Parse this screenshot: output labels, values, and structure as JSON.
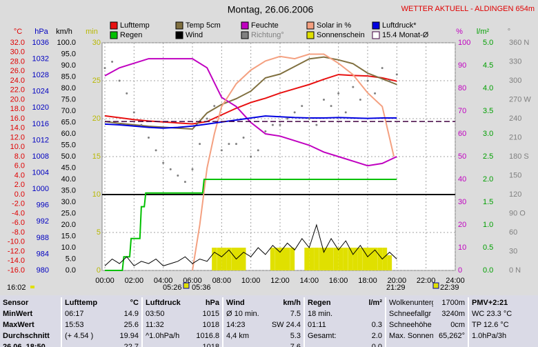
{
  "chart_data": {
    "type": "line",
    "title": "Montag, 26.06.2006",
    "station": "WETTER AKTUELL - ALDINGEN 654m",
    "xlim": [
      0,
      24
    ],
    "xticks": [
      {
        "value": 0,
        "label": "00:00"
      },
      {
        "value": 2,
        "label": "02:00"
      },
      {
        "value": 4,
        "label": "04:00"
      },
      {
        "value": 6,
        "label": "06:00"
      },
      {
        "value": 8,
        "label": "08:00"
      },
      {
        "value": 10,
        "label": "10:00"
      },
      {
        "value": 12,
        "label": "12:00"
      },
      {
        "value": 14,
        "label": "14:00"
      },
      {
        "value": 16,
        "label": "16:00"
      },
      {
        "value": 18,
        "label": "18:00"
      },
      {
        "value": 20,
        "label": "20:00"
      },
      {
        "value": 22,
        "label": "22:00"
      },
      {
        "value": 24,
        "label": "24:00"
      }
    ],
    "time_labels": [
      "16:02",
      "05:26",
      "05:36",
      "21:29",
      "22:39"
    ],
    "axes": {
      "temp": {
        "label": "°C",
        "color": "#e00000",
        "lim": [
          -16,
          32
        ],
        "ticks": [
          {
            "value": 32,
            "label": "32.0"
          },
          {
            "value": 30,
            "label": "30.0"
          },
          {
            "value": 28,
            "label": "28.0"
          },
          {
            "value": 26,
            "label": "26.0"
          },
          {
            "value": 24,
            "label": "24.0"
          },
          {
            "value": 22,
            "label": "22.0"
          },
          {
            "value": 20,
            "label": "20.0"
          },
          {
            "value": 18,
            "label": "18.0"
          },
          {
            "value": 16,
            "label": "16.0"
          },
          {
            "value": 14,
            "label": "14.0"
          },
          {
            "value": 12,
            "label": "12.0"
          },
          {
            "value": 10,
            "label": "10.0"
          },
          {
            "value": 8,
            "label": "8.0"
          },
          {
            "value": 6,
            "label": "6.0"
          },
          {
            "value": 4,
            "label": "4.0"
          },
          {
            "value": 2,
            "label": "2.0"
          },
          {
            "value": 0,
            "label": "0.0"
          },
          {
            "value": -2,
            "label": "-2.0"
          },
          {
            "value": -4,
            "label": "-4.0"
          },
          {
            "value": -6,
            "label": "-6.0"
          },
          {
            "value": -8,
            "label": "-8.0"
          },
          {
            "value": -10,
            "label": "-10.0"
          },
          {
            "value": -12,
            "label": "-12.0"
          },
          {
            "value": -14,
            "label": "-14.0"
          },
          {
            "value": -16,
            "label": "-16.0"
          }
        ]
      },
      "pressure": {
        "label": "hPa",
        "color": "#0000c0",
        "lim": [
          980,
          1036
        ],
        "ticks": [
          1036,
          1032,
          1028,
          1024,
          1020,
          1016,
          1012,
          1008,
          1004,
          1000,
          996,
          992,
          988,
          984,
          980
        ]
      },
      "wind": {
        "label": "km/h",
        "color": "#000000",
        "lim": [
          0,
          100
        ],
        "ticks": [
          {
            "value": 100,
            "label": "100.0"
          },
          {
            "value": 95,
            "label": "95.0"
          },
          {
            "value": 90,
            "label": "90.0"
          },
          {
            "value": 85,
            "label": "85.0"
          },
          {
            "value": 80,
            "label": "80.0"
          },
          {
            "value": 75,
            "label": "75.0"
          },
          {
            "value": 70,
            "label": "70.0"
          },
          {
            "value": 65,
            "label": "65.0"
          },
          {
            "value": 60,
            "label": "60.0"
          },
          {
            "value": 55,
            "label": "55.0"
          },
          {
            "value": 50,
            "label": "50.0"
          },
          {
            "value": 45,
            "label": "45.0"
          },
          {
            "value": 40,
            "label": "40.0"
          },
          {
            "value": 35,
            "label": "35.0"
          },
          {
            "value": 30,
            "label": "30.0"
          },
          {
            "value": 25,
            "label": "25.0"
          },
          {
            "value": 20,
            "label": "20.0"
          },
          {
            "value": 15,
            "label": "15.0"
          },
          {
            "value": 10,
            "label": "10.0"
          },
          {
            "value": 5,
            "label": "5.0"
          },
          {
            "value": 0,
            "label": "0.0"
          }
        ]
      },
      "sun": {
        "label": "min",
        "color": "#b8b800",
        "lim": [
          0,
          30
        ],
        "ticks": [
          30,
          25,
          20,
          15,
          10,
          5,
          0
        ],
        "grid": true
      },
      "humidity": {
        "label": "%",
        "color": "#c000c0",
        "lim": [
          0,
          100
        ],
        "ticks": [
          100,
          90,
          80,
          70,
          60,
          50,
          40,
          30,
          20,
          10,
          0
        ]
      },
      "rain": {
        "label": "l/m²",
        "color": "#00a000",
        "lim": [
          0,
          5
        ],
        "ticks": [
          {
            "value": 5,
            "label": "5.0"
          },
          {
            "value": 4.5,
            "label": "4.5"
          },
          {
            "value": 4,
            "label": "4.0"
          },
          {
            "value": 3.5,
            "label": "3.5"
          },
          {
            "value": 3,
            "label": "3.0"
          },
          {
            "value": 2.5,
            "label": "2.5"
          },
          {
            "value": 2,
            "label": "2.0"
          },
          {
            "value": 1.5,
            "label": "1.5"
          },
          {
            "value": 1,
            "label": "1.0"
          },
          {
            "value": 0.5,
            "label": "0.5"
          },
          {
            "value": 0,
            "label": "0.0"
          }
        ]
      },
      "direction": {
        "label": "°",
        "color": "#808080",
        "lim": [
          0,
          360
        ],
        "ticks": [
          {
            "value": 360,
            "label": "360 N"
          },
          330,
          300,
          {
            "value": 270,
            "label": "270 W"
          },
          240,
          210,
          {
            "value": 180,
            "label": "180 S"
          },
          150,
          120,
          {
            "value": 90,
            "label": "90 O"
          },
          60,
          30,
          {
            "value": 0,
            "label": "0 N"
          }
        ]
      }
    },
    "series": [
      {
        "name": "Lufttemp",
        "color": "#e81010",
        "axis": "temp",
        "style": "line",
        "x": [
          0,
          1,
          2,
          3,
          4,
          5,
          6,
          7,
          8,
          9,
          10,
          11,
          12,
          13,
          14,
          15,
          16,
          17,
          18,
          19,
          20
        ],
        "values": [
          16.6,
          16.2,
          15.8,
          15.5,
          15.3,
          15.1,
          14.9,
          15.4,
          16.8,
          18.2,
          19.4,
          20.3,
          21.4,
          22.3,
          23.2,
          24.3,
          25.3,
          25.1,
          25.0,
          24.6,
          23.9
        ]
      },
      {
        "name": "Temp 5cm",
        "color": "#807040",
        "axis": "temp",
        "style": "line",
        "x": [
          0,
          1,
          2,
          3,
          4,
          5,
          6,
          7,
          8,
          9,
          10,
          11,
          12,
          13,
          14,
          15,
          16,
          17,
          18,
          19,
          20
        ],
        "values": [
          15.4,
          15.0,
          14.7,
          14.4,
          14.2,
          14.0,
          13.8,
          17.2,
          19.0,
          20.2,
          21.8,
          24.6,
          25.4,
          27.0,
          28.6,
          29.0,
          28.4,
          27.6,
          25.6,
          24.4,
          23.2
        ]
      },
      {
        "name": "Feuchte",
        "color": "#c000c0",
        "axis": "humidity",
        "style": "line",
        "x": [
          0,
          1,
          2,
          3,
          4,
          5,
          6,
          7,
          8,
          9,
          10,
          11,
          12,
          13,
          14,
          15,
          16,
          17,
          18,
          19,
          20
        ],
        "values": [
          85.5,
          89,
          91,
          93,
          93,
          93,
          93,
          89,
          76,
          72,
          65,
          60,
          59,
          57,
          55,
          52,
          50,
          48,
          46,
          47,
          50
        ]
      },
      {
        "name": "Solar in %",
        "color": "#f4a080",
        "axis": "humidity",
        "style": "line",
        "x": [
          6,
          6.5,
          7,
          7.5,
          8,
          9,
          10,
          11,
          12,
          13,
          14,
          15,
          16,
          17,
          18,
          19,
          19.8
        ],
        "values": [
          0,
          20,
          45,
          60,
          72,
          82,
          88,
          92,
          94,
          93,
          95,
          95,
          91,
          86,
          78,
          72,
          50
        ]
      },
      {
        "name": "Luftdruck*",
        "color": "#0000e0",
        "axis": "pressure",
        "style": "line",
        "x": [
          0,
          1,
          2,
          3,
          4,
          5,
          6,
          7,
          8,
          9,
          10,
          11,
          12,
          13,
          14,
          15,
          16,
          17,
          18,
          19,
          20
        ],
        "values": [
          1016,
          1015.8,
          1015.5,
          1015.2,
          1015,
          1015.2,
          1015.5,
          1016,
          1016.5,
          1017,
          1017.5,
          1018,
          1017.8,
          1017.6,
          1017.5,
          1017.5,
          1017.6,
          1017.5,
          1017.4,
          1017.5,
          1017.5
        ]
      },
      {
        "name": "Regen",
        "color": "#00c000",
        "axis": "rain",
        "style": "line",
        "x": [
          0,
          1.2,
          1.3,
          1.7,
          1.8,
          2.4,
          2.5,
          2.7,
          2.8,
          6.7,
          6.8,
          20
        ],
        "values": [
          0,
          0,
          0.3,
          0.3,
          0.7,
          0.7,
          1.4,
          1.4,
          1.7,
          1.7,
          2.0,
          2.0
        ]
      },
      {
        "name": "Wind",
        "color": "#000000",
        "axis": "wind",
        "style": "line",
        "x": [
          0,
          0.5,
          1,
          1.5,
          2,
          2.5,
          3,
          3.5,
          4,
          4.5,
          5,
          5.5,
          6,
          6.5,
          7,
          7.5,
          8,
          8.5,
          9,
          9.5,
          10,
          10.5,
          11,
          11.5,
          12,
          12.5,
          13,
          13.5,
          14,
          14.5,
          15,
          15.5,
          16,
          16.5,
          17,
          17.5,
          18,
          18.5,
          19,
          19.5,
          20
        ],
        "values": [
          2,
          5,
          3,
          6,
          2,
          4,
          3,
          5,
          2,
          3,
          4,
          6,
          3,
          5,
          4,
          8,
          6,
          9,
          5,
          8,
          6,
          10,
          7,
          11,
          8,
          12,
          9,
          14,
          10,
          20,
          8,
          14,
          9,
          13,
          7,
          11,
          6,
          9,
          5,
          8,
          5
        ]
      },
      {
        "name": "Richtung°",
        "color": "#808080",
        "axis": "direction",
        "style": "dots",
        "x": [
          0,
          0.5,
          1,
          1.5,
          2,
          2.5,
          3,
          3.5,
          4,
          4.5,
          5,
          5.5,
          6,
          6.5,
          7,
          7.5,
          8,
          8.5,
          9,
          9.5,
          10,
          10.5,
          11,
          11.5,
          12,
          12.5,
          13,
          13.5,
          14,
          14.5,
          15,
          15.5,
          16,
          16.5,
          17,
          17.5,
          18,
          18.5,
          19,
          19.5,
          20
        ],
        "values": [
          320,
          330,
          300,
          280,
          250,
          230,
          210,
          190,
          170,
          160,
          150,
          140,
          160,
          200,
          240,
          260,
          190,
          200,
          200,
          210,
          180,
          190,
          220,
          230,
          230,
          240,
          250,
          260,
          240,
          230,
          270,
          260,
          280,
          250,
          290,
          270,
          300,
          280,
          320,
          300,
          310
        ]
      },
      {
        "name": "Sonnenschein",
        "color": "#e0e000",
        "axis": "sun",
        "style": "bars",
        "x": [
          7.33,
          7.67,
          8,
          8.33,
          8.67,
          9,
          9.33,
          11.33,
          11.67,
          12,
          12.33,
          12.67,
          13.67,
          14,
          14.33,
          14.67,
          15,
          15.33,
          15.67,
          16,
          16.33,
          16.67,
          17,
          17.33,
          17.67,
          18,
          18.33,
          18.67,
          19,
          19.33
        ],
        "values": [
          3,
          3,
          3,
          3,
          3,
          3,
          3,
          3,
          3,
          3,
          3,
          3,
          3,
          3,
          3,
          3,
          3,
          3,
          3,
          3,
          3,
          3,
          3,
          3,
          3,
          3,
          3,
          3,
          3,
          2
        ]
      },
      {
        "name": "15.4 Monat-Ø",
        "color": "#400040",
        "axis": "temp",
        "style": "hline",
        "values": [
          15.4
        ]
      }
    ]
  },
  "table": {
    "rows": [
      [
        "Sensor",
        "Lufttemp",
        "°C",
        "Luftdruck",
        "hPa",
        "Wind",
        "km/h",
        "Regen",
        "l/m²",
        "Wolkenunterg",
        "1700m",
        "PMV+2:21"
      ],
      [
        "MinWert",
        "06:17",
        "14.9",
        "03:50",
        "1015",
        "Ø 10 min.",
        "7.5",
        "18 min.",
        null,
        "Schneefallgr",
        "3240m",
        "WC 23.3 °C"
      ],
      [
        "MaxWert",
        "15:53",
        "25.6",
        "11:32",
        "1018",
        "14:23",
        "SW 24.4",
        "01:11",
        "0.3",
        "Schneehöhe",
        "0cm",
        "TP 12.6 °C"
      ],
      [
        "Durchschnitt",
        "(+ 4.54 )",
        "19.94",
        "^1.0hPa/h",
        "1016.8",
        "4,4 km",
        "5.3",
        "Gesamt:",
        "2.0",
        "Max. Sonnen",
        "65,262°",
        "1.0hPa/3h"
      ],
      [
        "26.06. 18:50",
        null,
        "22.7",
        null,
        "1018",
        null,
        "7.6",
        null,
        "0.0",
        null,
        null,
        null
      ]
    ]
  }
}
